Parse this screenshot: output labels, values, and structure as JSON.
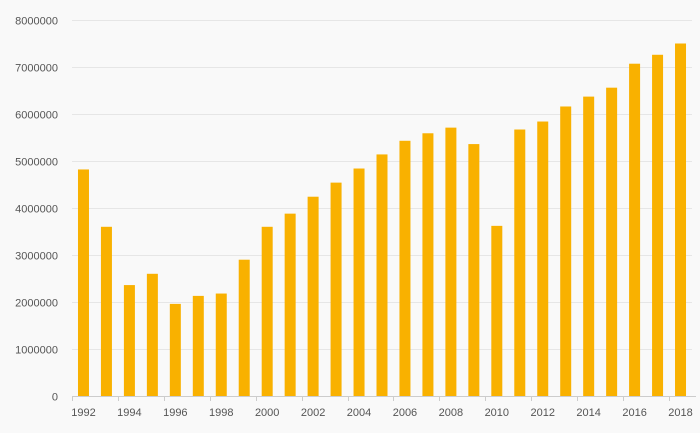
{
  "chart_data": {
    "type": "bar",
    "title": "",
    "xlabel": "",
    "ylabel": "",
    "categories": [
      "1992",
      "1993",
      "1994",
      "1995",
      "1996",
      "1997",
      "1998",
      "1999",
      "2000",
      "2001",
      "2002",
      "2003",
      "2004",
      "2005",
      "2006",
      "2007",
      "2008",
      "2009",
      "2010",
      "2011",
      "2012",
      "2013",
      "2014",
      "2015",
      "2016",
      "2017",
      "2018"
    ],
    "x_tick_labels": [
      "1992",
      "1994",
      "1996",
      "1998",
      "2000",
      "2002",
      "2004",
      "2006",
      "2008",
      "2010",
      "2012",
      "2014",
      "2016",
      "2018"
    ],
    "values": [
      4820000,
      3600000,
      2360000,
      2600000,
      1960000,
      2130000,
      2180000,
      2900000,
      3600000,
      3880000,
      4240000,
      4540000,
      4840000,
      5140000,
      5430000,
      5590000,
      5710000,
      5360000,
      3620000,
      5670000,
      5840000,
      6160000,
      6370000,
      6560000,
      7070000,
      7260000,
      7500000
    ],
    "ylim": [
      0,
      8000000
    ],
    "y_ticks": [
      0,
      1000000,
      2000000,
      3000000,
      4000000,
      5000000,
      6000000,
      7000000,
      8000000
    ],
    "y_tick_labels": [
      "0",
      "1000000",
      "2000000",
      "3000000",
      "4000000",
      "5000000",
      "6000000",
      "7000000",
      "8000000"
    ],
    "grid": true,
    "legend": "none",
    "colors": {
      "bar": "#f9b100",
      "grid": "#e6e6e6",
      "axis": "#cccccc",
      "text": "#555555",
      "background": "#f9f9f9"
    }
  }
}
